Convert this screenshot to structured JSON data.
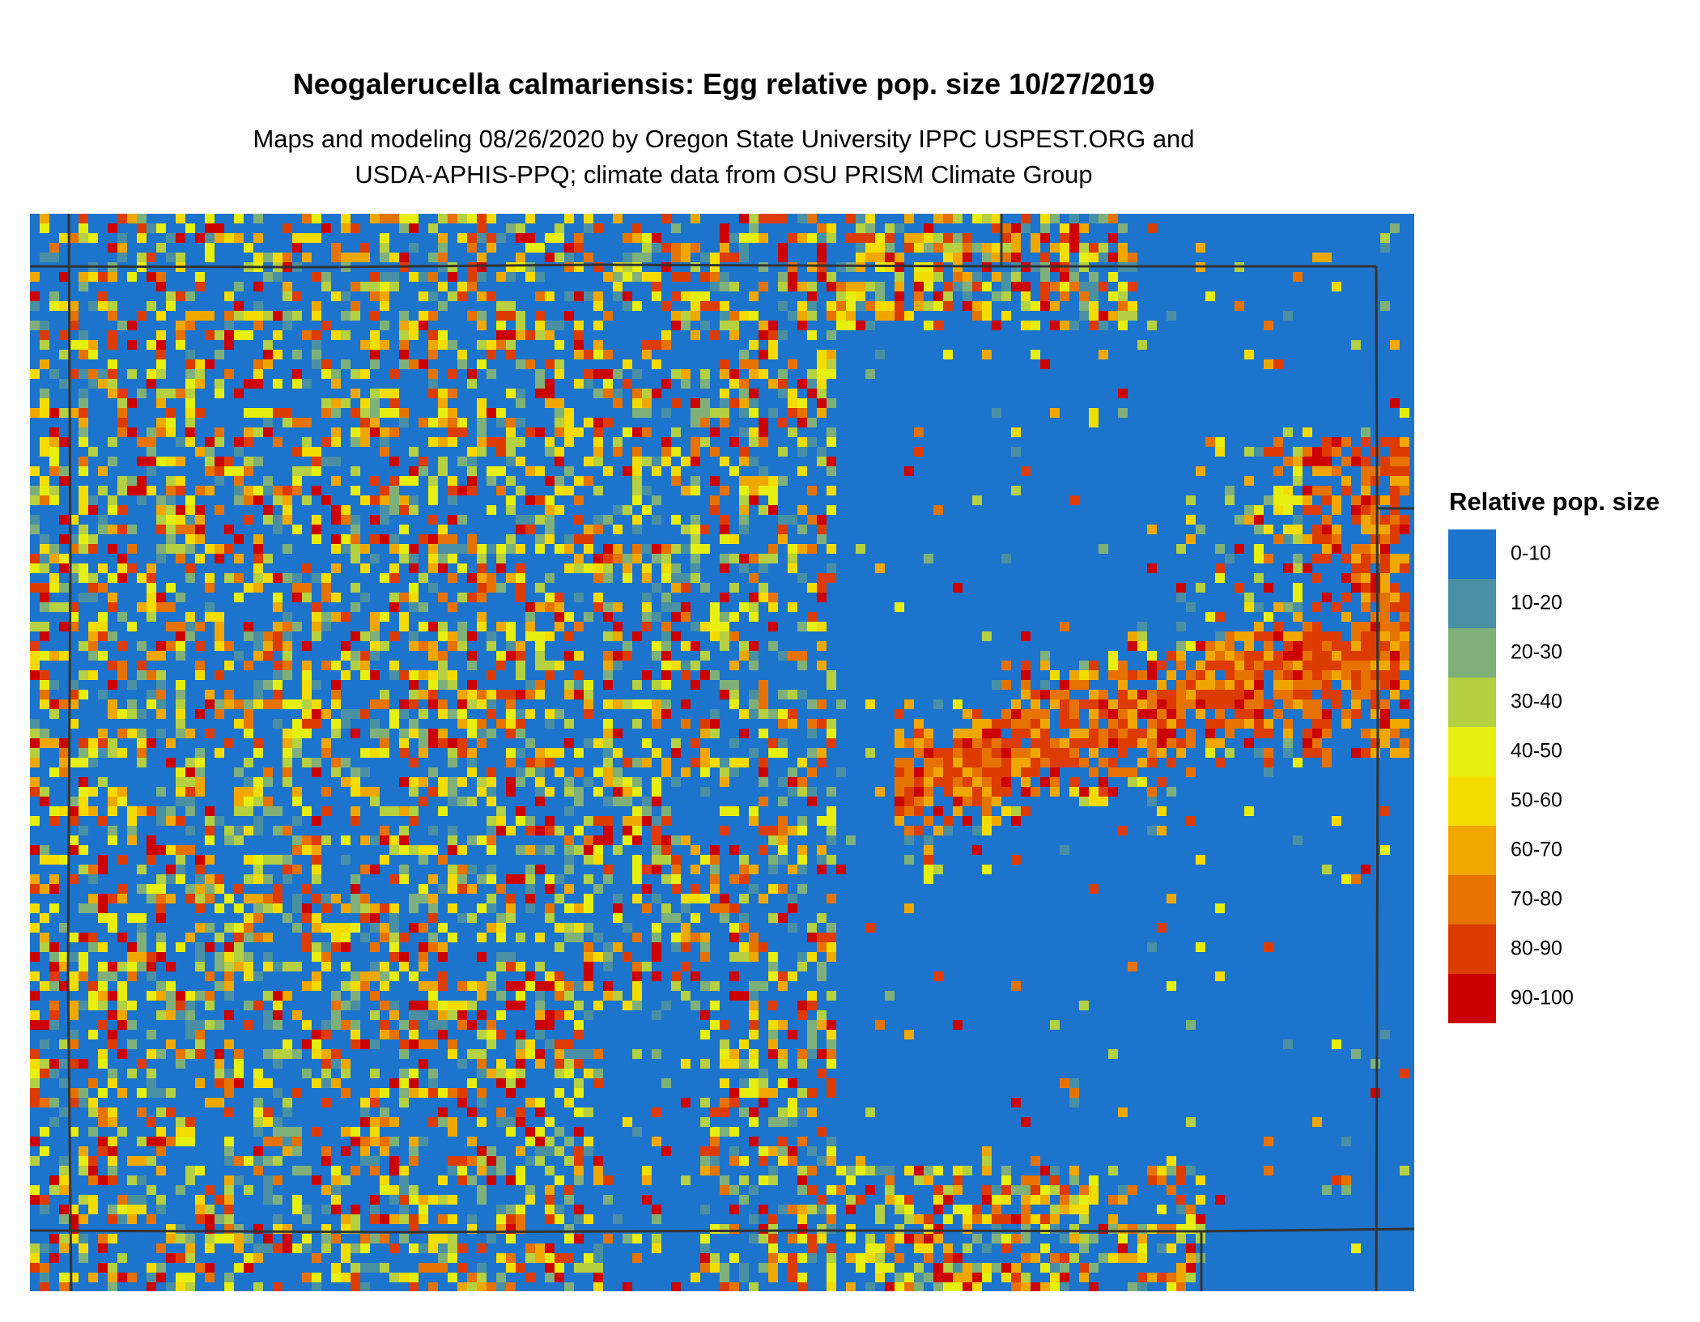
{
  "header": {
    "title": "Neogalerucella calmariensis: Egg relative pop. size 10/27/2019",
    "subtitle_lines": [
      "Maps and modeling 08/26/2020 by Oregon State University IPPC USPEST.ORG and",
      "USDA-APHIS-PPQ; climate data from OSU PRISM Climate Group"
    ]
  },
  "legend": {
    "title": "Relative pop. size",
    "items": [
      {
        "label": "0-10",
        "color": "#1c74cc"
      },
      {
        "label": "10-20",
        "color": "#4a90a4"
      },
      {
        "label": "20-30",
        "color": "#7fb07a"
      },
      {
        "label": "30-40",
        "color": "#b5d040"
      },
      {
        "label": "40-50",
        "color": "#e6ef10"
      },
      {
        "label": "50-60",
        "color": "#f5dc00"
      },
      {
        "label": "60-70",
        "color": "#f0a800"
      },
      {
        "label": "70-80",
        "color": "#e67300"
      },
      {
        "label": "80-90",
        "color": "#dc3c00"
      },
      {
        "label": "90-100",
        "color": "#cc0000"
      }
    ]
  }
}
